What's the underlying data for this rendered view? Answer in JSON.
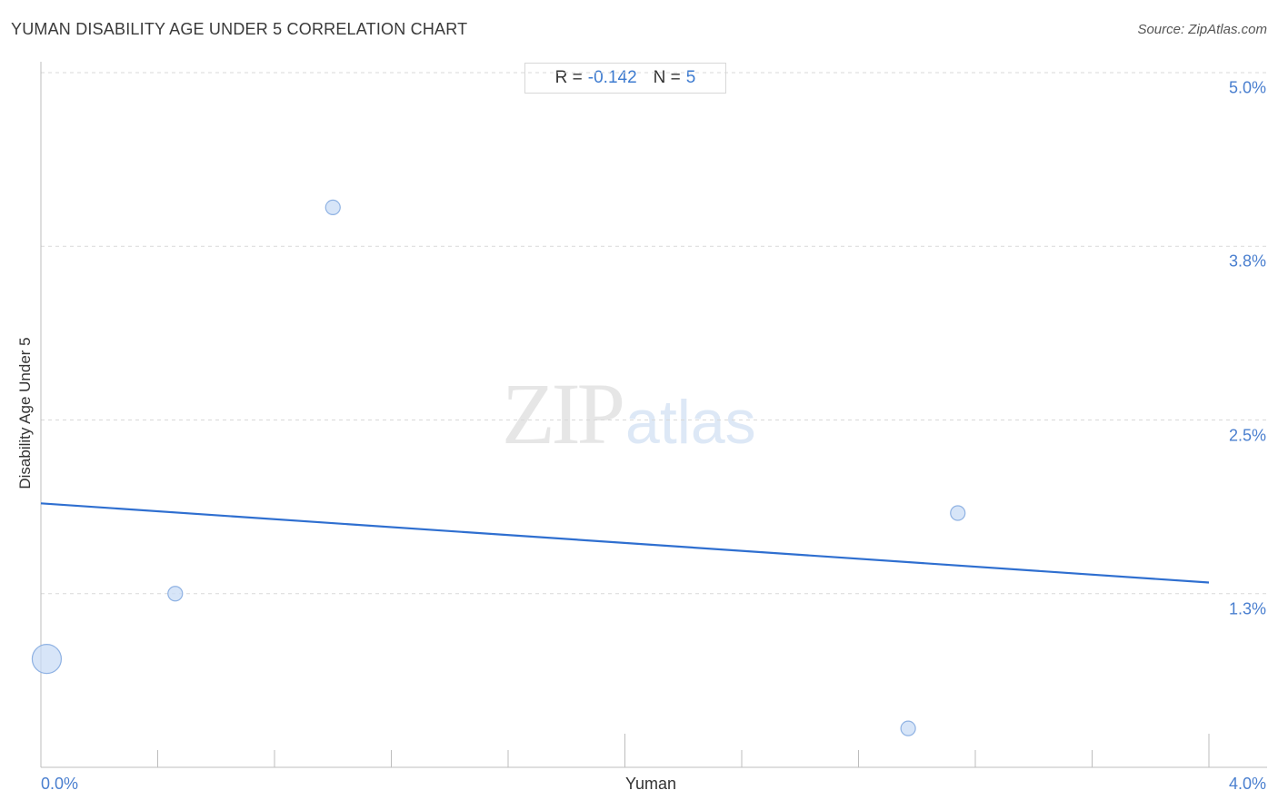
{
  "header": {
    "title": "YUMAN DISABILITY AGE UNDER 5 CORRELATION CHART",
    "source": "Source: ZipAtlas.com"
  },
  "stats": {
    "r_label": "R =",
    "r_value": "-0.142",
    "n_label": "N =",
    "n_value": "5"
  },
  "watermark": {
    "zip": "ZIP",
    "atlas": "atlas"
  },
  "colors": {
    "accent": "#2f6fd0",
    "point_fill": "#c9dcf5",
    "point_stroke": "#8fb2e3",
    "grid": "#d9d9d9",
    "label": "#4a7fcf"
  },
  "chart_data": {
    "type": "scatter",
    "title": "YUMAN DISABILITY AGE UNDER 5 CORRELATION CHART",
    "xlabel": "Yuman",
    "ylabel": "Disability Age Under 5",
    "xlim": [
      0.0,
      4.0
    ],
    "ylim": [
      0.0,
      5.0
    ],
    "x_tick_labels": [
      "0.0%",
      "4.0%"
    ],
    "y_ticks": [
      {
        "value": 5.0,
        "label": "5.0%"
      },
      {
        "value": 3.75,
        "label": "3.8%"
      },
      {
        "value": 2.5,
        "label": "2.5%"
      },
      {
        "value": 1.25,
        "label": "1.3%"
      }
    ],
    "grid": true,
    "points": [
      {
        "x": 0.02,
        "y": 0.78,
        "size": 3
      },
      {
        "x": 0.46,
        "y": 1.25,
        "size": 1
      },
      {
        "x": 1.0,
        "y": 4.03,
        "size": 1
      },
      {
        "x": 2.97,
        "y": 0.28,
        "size": 1
      },
      {
        "x": 3.14,
        "y": 1.83,
        "size": 1
      }
    ],
    "trendline": {
      "x": [
        0.0,
        4.0
      ],
      "y": [
        1.9,
        1.33
      ]
    },
    "r": -0.142,
    "n": 5
  }
}
